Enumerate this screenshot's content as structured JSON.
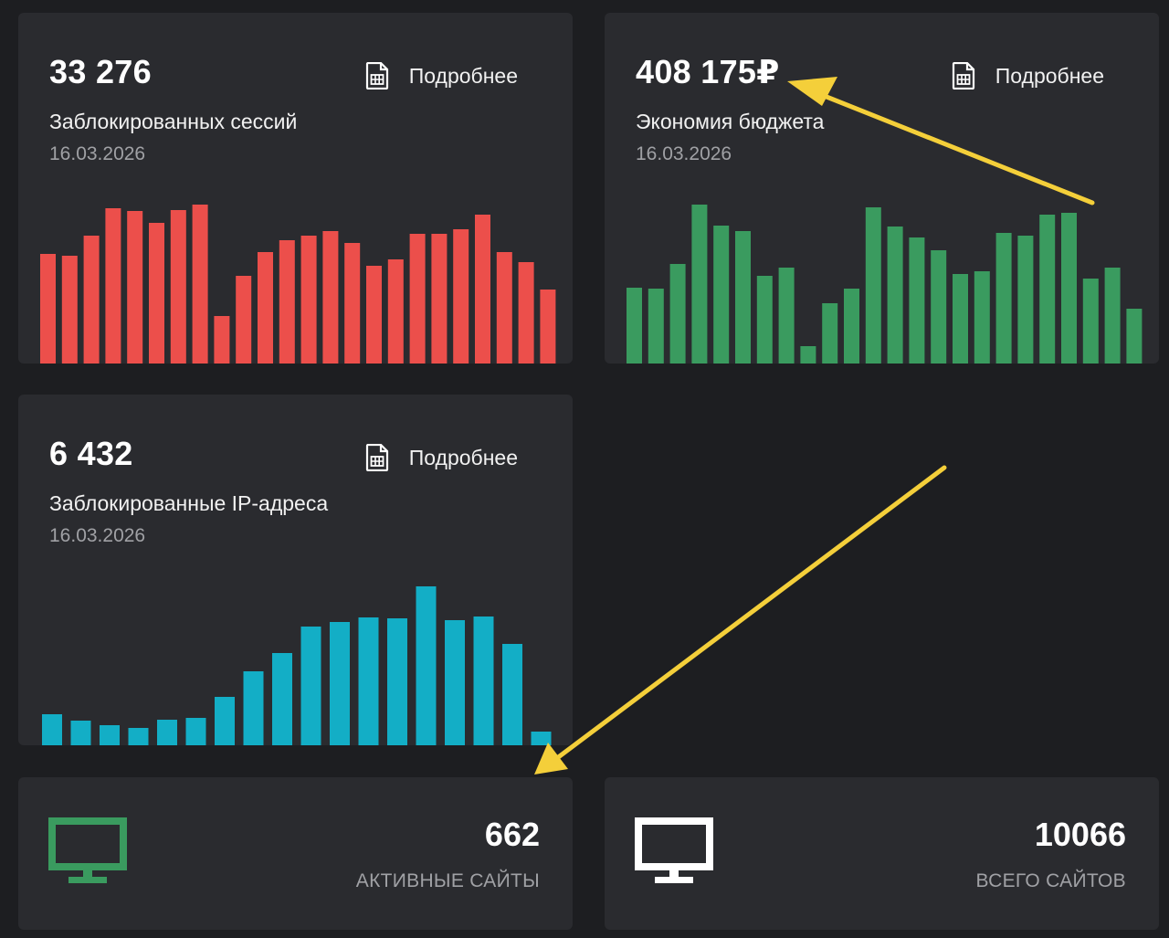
{
  "cards": [
    {
      "value": "33 276",
      "label": "Заблокированных сессий",
      "date": "16.03.2026",
      "more_label": "Подробнее",
      "chart_color": "#ec4f4b",
      "chart_data": {
        "type": "bar",
        "series": [
          {
            "name": "Заблокированных сессий",
            "values": [
              120,
              118,
              140,
              170,
              167,
              154,
              168,
              174,
              52,
              96,
              122,
              135,
              140,
              145,
              132,
              107,
              114,
              142,
              142,
              147,
              163,
              122,
              111,
              81
            ]
          }
        ]
      }
    },
    {
      "value": "408 175₽",
      "label": "Экономия бюджета",
      "date": "16.03.2026",
      "more_label": "Подробнее",
      "chart_color": "#3a9b5f",
      "chart_data": {
        "type": "bar",
        "series": [
          {
            "name": "Экономия бюджета",
            "values": [
              83,
              82,
              109,
              174,
              151,
              145,
              96,
              105,
              19,
              66,
              82,
              171,
              150,
              138,
              124,
              98,
              101,
              143,
              140,
              163,
              165,
              93,
              105,
              60
            ]
          }
        ]
      }
    },
    {
      "value": "6 432",
      "label": "Заблокированные IP-адреса",
      "date": "16.03.2026",
      "more_label": "Подробнее",
      "chart_color": "#13aec6",
      "chart_data": {
        "type": "bar",
        "series": [
          {
            "name": "Заблокированные IP-адреса",
            "values": [
              34,
              27,
              22,
              19,
              28,
              30,
              53,
              81,
              101,
              130,
              135,
              140,
              139,
              174,
              137,
              141,
              111,
              15
            ]
          }
        ]
      }
    }
  ],
  "sites": [
    {
      "value": "662",
      "label": "АКТИВНЫЕ САЙТЫ",
      "icon": "monitor-icon",
      "icon_color": "#3a9b5f"
    },
    {
      "value": "10066",
      "label": "ВСЕГО САЙТОВ",
      "icon": "monitor-icon",
      "icon_color": "#ffffff"
    }
  ],
  "annotation_color": "#f4cf3a"
}
